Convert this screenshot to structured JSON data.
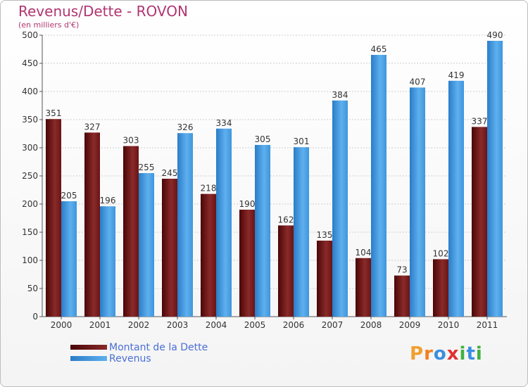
{
  "chart_data": {
    "type": "bar",
    "title": "Revenus/Dette - ROVON",
    "subtitle": "(en milliers d'€)",
    "categories": [
      "2000",
      "2001",
      "2002",
      "2003",
      "2004",
      "2005",
      "2006",
      "2007",
      "2008",
      "2009",
      "2010",
      "2011"
    ],
    "series": [
      {
        "name": "Montant de la Dette",
        "color": "#7a1818",
        "values": [
          351,
          327,
          303,
          245,
          218,
          190,
          162,
          135,
          104,
          73,
          102,
          337
        ]
      },
      {
        "name": "Revenus",
        "color": "#4da3e6",
        "values": [
          205,
          196,
          255,
          326,
          334,
          305,
          301,
          384,
          465,
          407,
          419,
          490
        ]
      }
    ],
    "ylim": [
      0,
      500
    ],
    "yticks": [
      0,
      50,
      100,
      150,
      200,
      250,
      300,
      350,
      400,
      450,
      500
    ],
    "grid": true,
    "legend_position": "bottom-left"
  },
  "logo": {
    "text": "Proxiti",
    "letters": [
      "P",
      "r",
      "o",
      "x",
      "i",
      "t",
      "i"
    ],
    "colors": [
      "#f0a030",
      "#f08020",
      "#3a8ee0",
      "#e03030",
      "#40b040",
      "#3a8ee0",
      "#40b040"
    ]
  }
}
